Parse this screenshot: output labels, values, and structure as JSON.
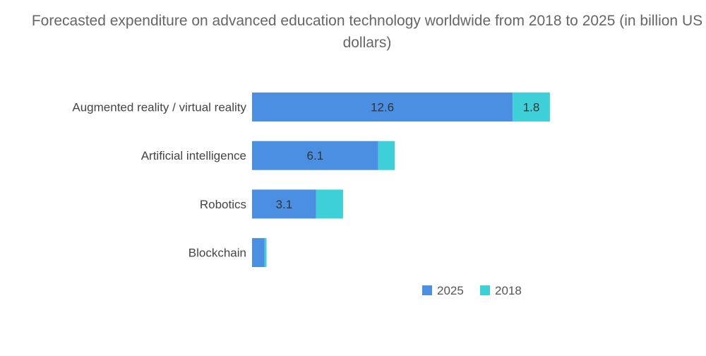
{
  "chart_data": {
    "type": "bar",
    "orientation": "horizontal",
    "stacked": true,
    "title": "Forecasted expenditure on advanced education technology worldwide from 2018 to 2025 (in billion US dollars)",
    "categories": [
      "Augmented reality / virtual reality",
      "Artificial intelligence",
      "Robotics",
      "Blockchain"
    ],
    "series": [
      {
        "name": "2025",
        "color": "#4a8fe2",
        "values": [
          12.6,
          6.1,
          3.1,
          0.6
        ],
        "labels": [
          "12.6",
          "6.1",
          "3.1",
          ""
        ]
      },
      {
        "name": "2018",
        "color": "#3dd0d8",
        "values": [
          1.8,
          0.8,
          1.3,
          0.1
        ],
        "labels": [
          "1.8",
          "",
          "",
          ""
        ]
      }
    ],
    "xlim": [
      0,
      22
    ],
    "grid": false,
    "axes_visible": false,
    "legend_position": "bottom-right"
  }
}
